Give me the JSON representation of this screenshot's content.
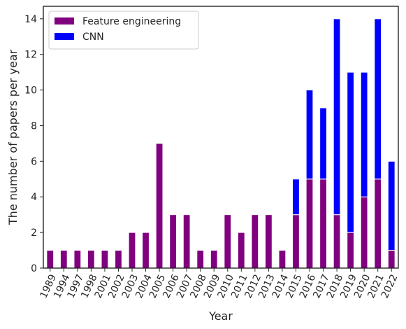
{
  "chart_data": {
    "type": "bar",
    "stacked": true,
    "xlabel": "Year",
    "ylabel": "The number of papers per year",
    "ylim": [
      0,
      14.7
    ],
    "yticks": [
      0,
      2,
      4,
      6,
      8,
      10,
      12,
      14
    ],
    "grid": false,
    "legend_position": "top-left",
    "categories": [
      "1989",
      "1994",
      "1997",
      "1998",
      "2001",
      "2002",
      "2003",
      "2004",
      "2005",
      "2006",
      "2007",
      "2008",
      "2009",
      "2010",
      "2011",
      "2012",
      "2013",
      "2014",
      "2015",
      "2016",
      "2017",
      "2018",
      "2019",
      "2020",
      "2021",
      "2022"
    ],
    "series": [
      {
        "name": "Feature engineering",
        "color": "#800080",
        "values": [
          1,
          1,
          1,
          1,
          1,
          1,
          2,
          2,
          7,
          3,
          3,
          1,
          1,
          3,
          2,
          3,
          3,
          1,
          3,
          5,
          5,
          3,
          2,
          4,
          5,
          1
        ]
      },
      {
        "name": "CNN",
        "color": "#0000ff",
        "values": [
          0,
          0,
          0,
          0,
          0,
          0,
          0,
          0,
          0,
          0,
          0,
          0,
          0,
          0,
          0,
          0,
          0,
          0,
          2,
          5,
          4,
          11,
          9,
          7,
          9,
          5
        ]
      }
    ]
  }
}
